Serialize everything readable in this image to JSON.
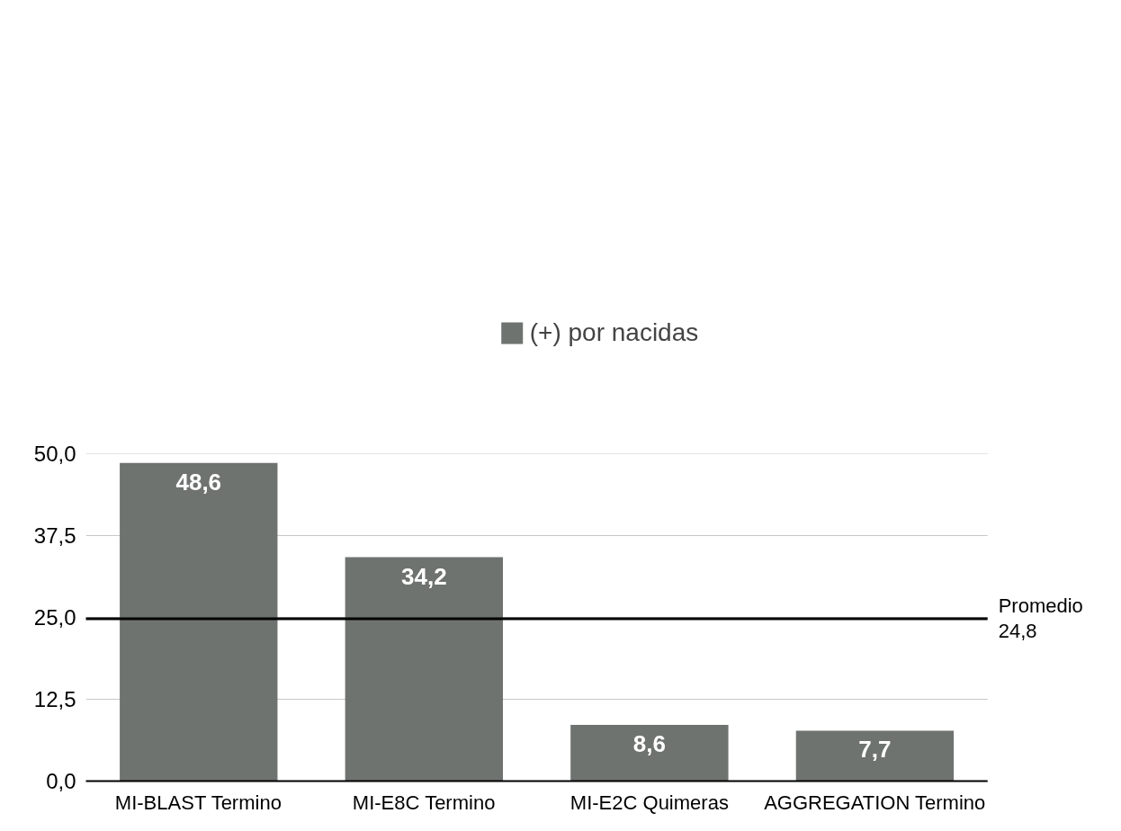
{
  "chart_data": {
    "type": "bar",
    "categories": [
      "MI-BLAST Termino",
      "MI-E8C Termino",
      "MI-E2C Quimeras",
      "AGGREGATION Termino"
    ],
    "series": [
      {
        "name": "(+) por nacidas",
        "color": "#6f7370",
        "values": [
          48.6,
          34.2,
          8.6,
          7.7
        ],
        "value_labels": [
          "48,6",
          "34,2",
          "8,6",
          "7,7"
        ]
      }
    ],
    "ylim": [
      0,
      50
    ],
    "yticks": [
      {
        "value": 0,
        "label": "0,0"
      },
      {
        "value": 12.5,
        "label": "12,5"
      },
      {
        "value": 25,
        "label": "25,0"
      },
      {
        "value": 37.5,
        "label": "37,5"
      },
      {
        "value": 50,
        "label": "50,0"
      }
    ],
    "ref_lines": [
      {
        "axis": "y",
        "value": 24.8,
        "label": "Promedio\n24,8",
        "color": "#000000"
      }
    ],
    "grid": "y",
    "legend": "top"
  }
}
